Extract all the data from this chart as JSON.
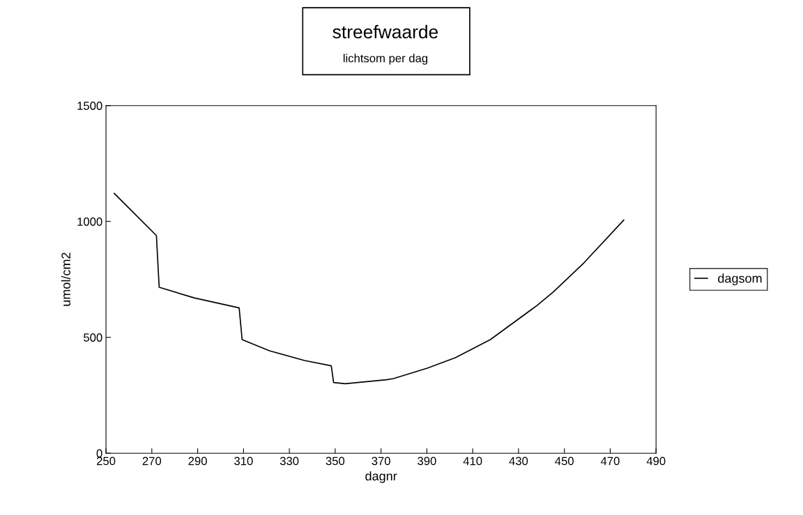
{
  "chart_data": {
    "type": "line",
    "title": "streefwaarde",
    "subtitle": "lichtsom per dag",
    "xlabel": "dagnr",
    "ylabel": "umol/cm2",
    "x": [
      253.6,
      272.0,
      273.2,
      288.6,
      308.1,
      309.4,
      321.3,
      336.6,
      348.3,
      349.3,
      354.4,
      356.7,
      372.4,
      375.4,
      390.2,
      402.4,
      417.7,
      438.0,
      445.3,
      458.5,
      475.9
    ],
    "series": [
      {
        "name": "dagsom",
        "color": "#000000",
        "values": [
          1121,
          939,
          716,
          670,
          627,
          490,
          442,
          400,
          377,
          305,
          300,
          302,
          317,
          322,
          367,
          412,
          490,
          637,
          697,
          821,
          1006
        ]
      }
    ],
    "xlim": [
      250,
      490
    ],
    "xticks": [
      250,
      270,
      290,
      310,
      330,
      350,
      370,
      390,
      410,
      430,
      450,
      470,
      490
    ],
    "ylim": [
      0,
      1500
    ],
    "yticks": [
      0,
      500,
      1000,
      1500
    ],
    "legend": "right",
    "grid": false,
    "marker": "none",
    "line_style": "solid"
  }
}
